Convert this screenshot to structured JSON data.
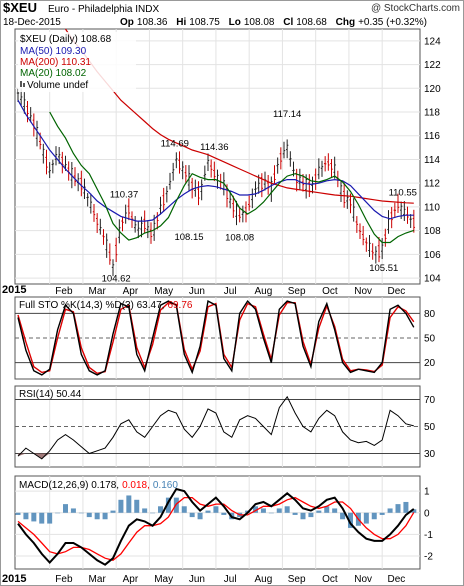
{
  "header": {
    "symbol": "$XEU",
    "name": "Euro - Philadelphia INDX",
    "watermark": "@ StockCharts.com",
    "date": "18-Dec-2015",
    "open_label": "Op",
    "open": "108.36",
    "high_label": "Hi",
    "high": "108.75",
    "low_label": "Lo",
    "low": "108.08",
    "close_label": "Cl",
    "close": "108.68",
    "change_label": "Chg",
    "change": "+0.35 (+0.32%)"
  },
  "legend": {
    "main": "$XEU (Daily) 108.68",
    "ma50": "MA(50) 109.30",
    "ma200": "MA(200) 110.31",
    "ma20": "MA(20) 108.02",
    "volume": "Volume undef"
  },
  "sto_legend": {
    "label": "Full STO %K(14,3) %D(3) 63.47,",
    "d_value": "69.76"
  },
  "rsi_legend": {
    "label": "RSI(14) 50.44"
  },
  "macd_legend": {
    "label": "MACD(12,26,9) 0.178,",
    "signal": "0.018,",
    "hist": "0.160"
  },
  "colors": {
    "price_up": "#222222",
    "price_down": "#cc0000",
    "ma50": "#1a1ab0",
    "ma200": "#cc0000",
    "ma20": "#006400",
    "sto_k": "#000000",
    "sto_d": "#dd0000",
    "macd": "#000000",
    "signal": "#ff0000",
    "hist": "#4682b4",
    "rsi_fill": "#8b5a5a"
  },
  "year_label_top": "2015",
  "year_label_bottom": "2015",
  "chart_data": {
    "type": "line",
    "x_months": [
      "Feb",
      "Mar",
      "Apr",
      "May",
      "Jun",
      "Jul",
      "Aug",
      "Sep",
      "Oct",
      "Nov",
      "Dec"
    ],
    "price_panel": {
      "ylim": [
        103.5,
        125
      ],
      "yticks": [
        104,
        106,
        108,
        110,
        112,
        114,
        116,
        118,
        120,
        122,
        124
      ],
      "x_index": [
        0,
        5,
        10,
        15,
        20,
        25,
        30,
        35,
        40,
        45,
        50,
        55,
        60,
        65,
        70,
        75,
        80,
        85,
        90,
        95,
        100,
        105,
        110,
        115,
        120,
        125,
        130,
        135,
        140,
        145,
        150,
        155,
        160,
        165,
        170,
        175,
        180,
        185,
        190,
        195,
        200,
        205,
        210,
        215,
        220,
        225,
        230,
        235,
        240,
        245,
        250
      ],
      "close": [
        119.6,
        118.5,
        117.0,
        115.0,
        113.0,
        114.5,
        113.5,
        112.5,
        112.0,
        110.5,
        108.8,
        107.2,
        105.0,
        108.5,
        109.8,
        108.0,
        108.6,
        107.6,
        110.0,
        111.5,
        114.0,
        113.0,
        111.8,
        111.0,
        113.8,
        112.6,
        111.8,
        110.2,
        109.2,
        109.8,
        111.5,
        112.2,
        111.6,
        114.0,
        115.0,
        112.6,
        112.0,
        111.6,
        113.0,
        113.8,
        113.2,
        111.0,
        110.4,
        108.2,
        107.0,
        106.0,
        106.5,
        109.0,
        110.2,
        109.4,
        108.68
      ],
      "ma50": [
        119.0,
        117.8,
        116.8,
        115.8,
        114.8,
        114.0,
        113.2,
        112.5,
        111.8,
        111.2,
        110.5,
        110.0,
        109.6,
        109.2,
        109.0,
        108.8,
        108.8,
        108.9,
        109.4,
        110.0,
        110.6,
        111.1,
        111.5,
        111.7,
        111.8,
        111.7,
        111.5,
        111.3,
        111.0,
        111.0,
        111.1,
        111.4,
        111.8,
        112.1,
        112.3,
        112.3,
        112.0,
        111.9,
        112.0,
        112.2,
        112.3,
        112.2,
        111.8,
        111.1,
        110.4,
        109.7,
        109.2,
        109.0,
        109.2,
        109.3,
        109.3
      ],
      "ma200": [
        null,
        null,
        null,
        null,
        null,
        null,
        125.0,
        124.0,
        123.2,
        122.3,
        121.4,
        120.6,
        119.8,
        119.0,
        118.4,
        117.8,
        117.2,
        116.6,
        116.1,
        115.7,
        115.4,
        115.1,
        114.8,
        114.6,
        114.4,
        114.1,
        113.8,
        113.5,
        113.2,
        112.9,
        112.6,
        112.3,
        112.0,
        111.8,
        111.6,
        111.5,
        111.4,
        111.3,
        111.2,
        111.1,
        111.0,
        110.95,
        110.9,
        110.8,
        110.7,
        110.6,
        110.5,
        110.45,
        110.4,
        110.35,
        110.31
      ],
      "ma20": [
        null,
        null,
        null,
        null,
        118.0,
        116.8,
        115.8,
        114.5,
        113.5,
        112.8,
        111.5,
        110.2,
        108.6,
        107.8,
        107.2,
        107.4,
        107.8,
        108.0,
        108.4,
        109.1,
        110.5,
        111.8,
        112.8,
        112.5,
        112.3,
        112.3,
        112.0,
        111.0,
        109.9,
        109.4,
        109.8,
        110.4,
        111.2,
        112.0,
        112.6,
        112.8,
        112.6,
        112.2,
        112.1,
        112.3,
        112.6,
        112.1,
        111.3,
        110.2,
        108.9,
        107.7,
        107.0,
        107.0,
        107.5,
        107.8,
        108.02
      ]
    },
    "price_annotations": [
      {
        "label": "104.62",
        "x": 62,
        "y": 104.62,
        "pos": "below"
      },
      {
        "label": "110.37",
        "x": 67,
        "y": 110.37,
        "pos": "above"
      },
      {
        "label": "114.69",
        "x": 99,
        "y": 114.69,
        "pos": "above"
      },
      {
        "label": "108.15",
        "x": 108,
        "y": 108.15,
        "pos": "below"
      },
      {
        "label": "114.36",
        "x": 124,
        "y": 114.36,
        "pos": "above"
      },
      {
        "label": "108.08",
        "x": 140,
        "y": 108.08,
        "pos": "below"
      },
      {
        "label": "117.14",
        "x": 170,
        "y": 117.14,
        "pos": "above"
      },
      {
        "label": "105.51",
        "x": 231,
        "y": 105.51,
        "pos": "below"
      },
      {
        "label": "110.55",
        "x": 243,
        "y": 110.55,
        "pos": "above"
      }
    ],
    "stochastic_panel": {
      "ylim": [
        0,
        100
      ],
      "yticks": [
        20,
        50,
        80
      ],
      "x_index": [
        0,
        5,
        10,
        15,
        20,
        25,
        30,
        35,
        40,
        45,
        50,
        55,
        60,
        65,
        70,
        75,
        80,
        85,
        90,
        95,
        100,
        105,
        110,
        115,
        120,
        125,
        130,
        135,
        140,
        145,
        150,
        155,
        160,
        165,
        170,
        175,
        180,
        185,
        190,
        195,
        200,
        205,
        210,
        215,
        220,
        225,
        230,
        235,
        240,
        245,
        250
      ],
      "k": [
        75,
        35,
        10,
        5,
        12,
        60,
        90,
        80,
        30,
        10,
        5,
        10,
        55,
        92,
        88,
        30,
        10,
        50,
        90,
        95,
        90,
        30,
        8,
        40,
        95,
        90,
        25,
        10,
        80,
        95,
        85,
        50,
        20,
        85,
        95,
        92,
        40,
        15,
        70,
        92,
        60,
        20,
        8,
        12,
        10,
        8,
        20,
        85,
        90,
        80,
        63
      ],
      "d": [
        78,
        45,
        15,
        8,
        10,
        50,
        85,
        82,
        38,
        14,
        7,
        9,
        45,
        85,
        90,
        38,
        14,
        42,
        84,
        93,
        91,
        36,
        12,
        34,
        88,
        92,
        30,
        14,
        72,
        92,
        88,
        55,
        24,
        78,
        93,
        93,
        46,
        18,
        62,
        89,
        64,
        24,
        10,
        12,
        11,
        9,
        17,
        75,
        88,
        83,
        69.76
      ]
    },
    "rsi_panel": {
      "ylim": [
        20,
        80
      ],
      "yticks": [
        30,
        50,
        70
      ],
      "x_index": [
        0,
        5,
        10,
        15,
        20,
        25,
        30,
        35,
        40,
        45,
        50,
        55,
        60,
        65,
        70,
        75,
        80,
        85,
        90,
        95,
        100,
        105,
        110,
        115,
        120,
        125,
        130,
        135,
        140,
        145,
        150,
        155,
        160,
        165,
        170,
        175,
        180,
        185,
        190,
        195,
        200,
        205,
        210,
        215,
        220,
        225,
        230,
        235,
        240,
        245,
        250
      ],
      "rsi": [
        28,
        34,
        30,
        26,
        32,
        40,
        44,
        40,
        35,
        30,
        32,
        34,
        42,
        52,
        55,
        46,
        42,
        50,
        58,
        62,
        60,
        48,
        42,
        50,
        63,
        60,
        46,
        42,
        55,
        58,
        56,
        50,
        44,
        64,
        72,
        60,
        50,
        46,
        56,
        62,
        58,
        46,
        40,
        38,
        39,
        36,
        40,
        62,
        58,
        52,
        50.44
      ]
    },
    "macd_panel": {
      "ylim": [
        -2.6,
        1.7
      ],
      "yticks": [
        -2,
        -1,
        0,
        1
      ],
      "x_index": [
        0,
        5,
        10,
        15,
        20,
        25,
        30,
        35,
        40,
        45,
        50,
        55,
        60,
        65,
        70,
        75,
        80,
        85,
        90,
        95,
        100,
        105,
        110,
        115,
        120,
        125,
        130,
        135,
        140,
        145,
        150,
        155,
        160,
        165,
        170,
        175,
        180,
        185,
        190,
        195,
        200,
        205,
        210,
        215,
        220,
        225,
        230,
        235,
        240,
        245,
        250
      ],
      "macd": [
        -0.5,
        -1.0,
        -1.4,
        -1.9,
        -2.3,
        -1.9,
        -1.4,
        -1.4,
        -1.6,
        -1.9,
        -2.2,
        -2.4,
        -2.1,
        -1.3,
        -0.6,
        -0.3,
        -0.4,
        -0.6,
        -0.2,
        0.5,
        1.1,
        1.0,
        0.5,
        0.1,
        0.4,
        0.7,
        0.3,
        -0.2,
        -0.3,
        0.0,
        0.4,
        0.5,
        0.3,
        0.6,
        0.9,
        0.6,
        0.2,
        0.1,
        0.3,
        0.6,
        0.7,
        0.2,
        -0.5,
        -0.9,
        -1.2,
        -1.3,
        -1.3,
        -1.0,
        -0.6,
        -0.1,
        0.178
      ],
      "signal": [
        -0.4,
        -0.7,
        -1.0,
        -1.4,
        -1.8,
        -1.9,
        -1.8,
        -1.6,
        -1.6,
        -1.7,
        -1.9,
        -2.1,
        -2.2,
        -1.9,
        -1.4,
        -0.9,
        -0.6,
        -0.6,
        -0.5,
        -0.2,
        0.4,
        0.7,
        0.7,
        0.4,
        0.3,
        0.4,
        0.4,
        0.1,
        -0.1,
        -0.1,
        0.1,
        0.3,
        0.3,
        0.4,
        0.6,
        0.7,
        0.5,
        0.3,
        0.2,
        0.3,
        0.5,
        0.5,
        0.2,
        -0.3,
        -0.7,
        -1.0,
        -1.2,
        -1.2,
        -1.0,
        -0.6,
        0.018
      ]
    }
  }
}
